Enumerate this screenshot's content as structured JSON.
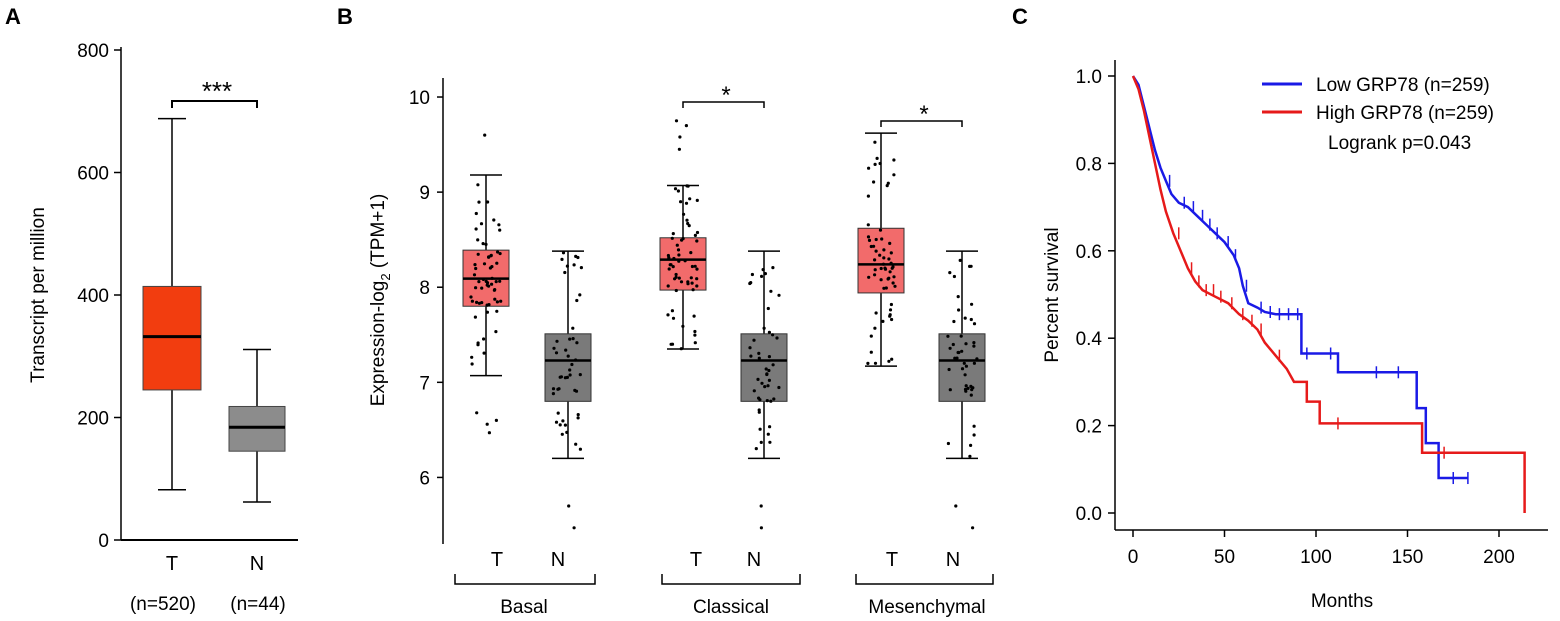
{
  "panels": {
    "a": "A",
    "b": "B",
    "c": "C"
  },
  "chart_data": [
    {
      "type": "box",
      "panel": "A",
      "ylabel": "Transcript per million",
      "ylim": [
        0,
        800
      ],
      "yticks": [
        "0",
        "200",
        "400",
        "600",
        "800"
      ],
      "significance": "***",
      "groups": [
        {
          "name": "T",
          "n_label": "(n=520)",
          "color": "#f23d0f",
          "min": 82,
          "q1": 245,
          "median": 332,
          "q3": 414,
          "max": 688
        },
        {
          "name": "N",
          "n_label": "(n=44)",
          "color": "#8c8c8c",
          "min": 62,
          "q1": 145,
          "median": 184,
          "q3": 218,
          "max": 311
        }
      ]
    },
    {
      "type": "box",
      "panel": "B",
      "ylabel_main": "Expression-log",
      "ylabel_sub": "2",
      "ylabel_tail": " (TPM+1)",
      "ylim": [
        5.3,
        10.2
      ],
      "yticks": [
        "6",
        "7",
        "8",
        "9",
        "10"
      ],
      "groups": [
        {
          "name": "Basal",
          "significance": "",
          "boxes": [
            {
              "label": "T",
              "color": "#f26b6b",
              "min": 7.07,
              "q1": 7.8,
              "median": 8.09,
              "q3": 8.39,
              "max": 9.18,
              "outliers": [
                9.6,
                6.68,
                6.6,
                6.56,
                6.47
              ]
            },
            {
              "label": "N",
              "color": "#7a7a7a",
              "min": 6.2,
              "q1": 6.8,
              "median": 7.23,
              "q3": 7.51,
              "max": 8.38,
              "outliers": [
                5.7,
                5.47
              ]
            }
          ]
        },
        {
          "name": "Classical",
          "significance": "*",
          "boxes": [
            {
              "label": "T",
              "color": "#f26b6b",
              "min": 7.35,
              "q1": 7.97,
              "median": 8.29,
              "q3": 8.52,
              "max": 9.07,
              "outliers": [
                9.75,
                9.7,
                9.58,
                9.45
              ]
            },
            {
              "label": "N",
              "color": "#7a7a7a",
              "min": 6.2,
              "q1": 6.8,
              "median": 7.23,
              "q3": 7.51,
              "max": 8.38,
              "outliers": [
                5.7,
                5.47
              ]
            }
          ]
        },
        {
          "name": "Mesenchymal",
          "significance": "*",
          "boxes": [
            {
              "label": "T",
              "color": "#f26b6b",
              "min": 7.17,
              "q1": 7.94,
              "median": 8.24,
              "q3": 8.62,
              "max": 9.62,
              "outliers": []
            },
            {
              "label": "N",
              "color": "#7a7a7a",
              "min": 6.2,
              "q1": 6.8,
              "median": 7.23,
              "q3": 7.51,
              "max": 8.38,
              "outliers": [
                5.7,
                5.47
              ]
            }
          ]
        }
      ]
    },
    {
      "type": "line",
      "panel": "C",
      "xlabel": "Months",
      "ylabel": "Percent survival",
      "xlim": [
        0,
        220
      ],
      "ylim": [
        -0.04,
        1.04
      ],
      "xticks": [
        "0",
        "50",
        "100",
        "150",
        "200"
      ],
      "yticks": [
        "0.0",
        "0.2",
        "0.4",
        "0.6",
        "0.8",
        "1.0"
      ],
      "logrank": "Logrank p=0.043",
      "series": [
        {
          "name": "Low GRP78 (n=259)",
          "color": "#1a1ae6",
          "points": [
            [
              0,
              1.0
            ],
            [
              3,
              0.98
            ],
            [
              6,
              0.93
            ],
            [
              9,
              0.88
            ],
            [
              12,
              0.83
            ],
            [
              15,
              0.79
            ],
            [
              18,
              0.76
            ],
            [
              21,
              0.73
            ],
            [
              25,
              0.71
            ],
            [
              30,
              0.7
            ],
            [
              35,
              0.68
            ],
            [
              40,
              0.66
            ],
            [
              45,
              0.64
            ],
            [
              50,
              0.62
            ],
            [
              55,
              0.59
            ],
            [
              58,
              0.56
            ],
            [
              60,
              0.52
            ],
            [
              63,
              0.48
            ],
            [
              68,
              0.47
            ],
            [
              72,
              0.46
            ],
            [
              78,
              0.455
            ],
            [
              92,
              0.455
            ],
            [
              92,
              0.365
            ],
            [
              112,
              0.365
            ],
            [
              112,
              0.322
            ],
            [
              155,
              0.322
            ],
            [
              155,
              0.24
            ],
            [
              160,
              0.24
            ],
            [
              160,
              0.16
            ],
            [
              167,
              0.16
            ],
            [
              167,
              0.08
            ],
            [
              183,
              0.08
            ]
          ],
          "censor_x": [
            20,
            28,
            33,
            38,
            42,
            46,
            52,
            56,
            62,
            70,
            75,
            80,
            85,
            90,
            95,
            108,
            133,
            145,
            175,
            183
          ]
        },
        {
          "name": "High GRP78 (n=259)",
          "color": "#e61a1a",
          "points": [
            [
              0,
              1.0
            ],
            [
              3,
              0.97
            ],
            [
              6,
              0.92
            ],
            [
              9,
              0.86
            ],
            [
              12,
              0.8
            ],
            [
              15,
              0.74
            ],
            [
              18,
              0.69
            ],
            [
              22,
              0.64
            ],
            [
              26,
              0.6
            ],
            [
              30,
              0.56
            ],
            [
              34,
              0.53
            ],
            [
              38,
              0.51
            ],
            [
              45,
              0.495
            ],
            [
              52,
              0.48
            ],
            [
              58,
              0.455
            ],
            [
              63,
              0.44
            ],
            [
              68,
              0.42
            ],
            [
              72,
              0.39
            ],
            [
              78,
              0.36
            ],
            [
              84,
              0.33
            ],
            [
              88,
              0.3
            ],
            [
              95,
              0.3
            ],
            [
              95,
              0.255
            ],
            [
              102,
              0.255
            ],
            [
              102,
              0.205
            ],
            [
              158,
              0.205
            ],
            [
              158,
              0.138
            ],
            [
              214,
              0.138
            ],
            [
              214,
              0.0
            ]
          ],
          "censor_x": [
            25,
            32,
            36,
            40,
            44,
            48,
            54,
            60,
            65,
            70,
            80,
            112,
            170
          ]
        }
      ]
    }
  ]
}
